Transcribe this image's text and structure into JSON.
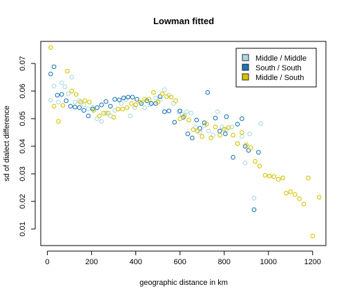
{
  "chart_data": {
    "type": "scatter",
    "title": "Lowman fitted",
    "xlabel": "geographic distance in km",
    "ylabel": "sd of dialect difference",
    "xlim": [
      -30,
      1260
    ],
    "ylim": [
      0.004,
      0.078
    ],
    "xticks": [
      0,
      200,
      400,
      600,
      800,
      1000,
      1200
    ],
    "yticks": [
      0.01,
      0.02,
      0.03,
      0.04,
      0.05,
      0.06,
      0.07
    ],
    "grid": false,
    "legend_position": "top-right",
    "series": [
      {
        "name": "Middle / Middle",
        "color": "#add8e6",
        "points": [
          [
            15,
            0.0567
          ],
          [
            30,
            0.0618
          ],
          [
            50,
            0.056
          ],
          [
            65,
            0.063
          ],
          [
            80,
            0.0615
          ],
          [
            95,
            0.059
          ],
          [
            110,
            0.065
          ],
          [
            125,
            0.056
          ],
          [
            145,
            0.0565
          ],
          [
            165,
            0.055
          ],
          [
            185,
            0.0535
          ],
          [
            205,
            0.054
          ],
          [
            225,
            0.05
          ],
          [
            245,
            0.049
          ],
          [
            265,
            0.052
          ],
          [
            285,
            0.051
          ],
          [
            305,
            0.053
          ],
          [
            335,
            0.0555
          ],
          [
            355,
            0.057
          ],
          [
            375,
            0.051
          ],
          [
            395,
            0.054
          ],
          [
            420,
            0.056
          ],
          [
            440,
            0.054
          ],
          [
            465,
            0.055
          ],
          [
            490,
            0.0575
          ],
          [
            510,
            0.057
          ],
          [
            530,
            0.0605
          ],
          [
            550,
            0.0585
          ],
          [
            570,
            0.0555
          ],
          [
            595,
            0.0525
          ],
          [
            610,
            0.0515
          ],
          [
            630,
            0.0525
          ],
          [
            650,
            0.052
          ],
          [
            670,
            0.047
          ],
          [
            690,
            0.045
          ],
          [
            710,
            0.0475
          ],
          [
            730,
            0.0455
          ],
          [
            750,
            0.044
          ],
          [
            770,
            0.0525
          ],
          [
            790,
            0.047
          ],
          [
            810,
            0.046
          ],
          [
            835,
            0.047
          ],
          [
            860,
            0.041
          ],
          [
            880,
            0.0435
          ],
          [
            895,
            0.034
          ],
          [
            915,
            0.0445
          ],
          [
            935,
            0.0212
          ],
          [
            965,
            0.0482
          ]
        ]
      },
      {
        "name": "South / South",
        "color": "#1f78b4",
        "points": [
          [
            15,
            0.0662
          ],
          [
            30,
            0.0688
          ],
          [
            45,
            0.0585
          ],
          [
            65,
            0.0588
          ],
          [
            85,
            0.0565
          ],
          [
            105,
            0.0545
          ],
          [
            125,
            0.0542
          ],
          [
            145,
            0.054
          ],
          [
            165,
            0.053
          ],
          [
            185,
            0.051
          ],
          [
            205,
            0.0535
          ],
          [
            225,
            0.054
          ],
          [
            245,
            0.055
          ],
          [
            265,
            0.0562
          ],
          [
            285,
            0.0545
          ],
          [
            305,
            0.057
          ],
          [
            325,
            0.0568
          ],
          [
            345,
            0.0575
          ],
          [
            365,
            0.0578
          ],
          [
            385,
            0.0578
          ],
          [
            405,
            0.057
          ],
          [
            425,
            0.0555
          ],
          [
            450,
            0.0565
          ],
          [
            470,
            0.0555
          ],
          [
            490,
            0.0555
          ],
          [
            510,
            0.058
          ],
          [
            530,
            0.0525
          ],
          [
            550,
            0.0528
          ],
          [
            575,
            0.0487
          ],
          [
            600,
            0.0528
          ],
          [
            615,
            0.0505
          ],
          [
            635,
            0.0445
          ],
          [
            655,
            0.043
          ],
          [
            675,
            0.0495
          ],
          [
            690,
            0.0465
          ],
          [
            710,
            0.0485
          ],
          [
            725,
            0.0595
          ],
          [
            760,
            0.0502
          ],
          [
            780,
            0.0455
          ],
          [
            805,
            0.0445
          ],
          [
            810,
            0.0507
          ],
          [
            840,
            0.036
          ],
          [
            860,
            0.048
          ],
          [
            880,
            0.05
          ],
          [
            895,
            0.04
          ],
          [
            910,
            0.0385
          ],
          [
            935,
            0.017
          ],
          [
            955,
            0.0378
          ]
        ]
      },
      {
        "name": "Middle / South",
        "color": "#d4c400",
        "points": [
          [
            15,
            0.0758
          ],
          [
            30,
            0.0545
          ],
          [
            50,
            0.049
          ],
          [
            70,
            0.0548
          ],
          [
            90,
            0.0672
          ],
          [
            110,
            0.06
          ],
          [
            130,
            0.0588
          ],
          [
            150,
            0.056
          ],
          [
            170,
            0.0565
          ],
          [
            190,
            0.056
          ],
          [
            210,
            0.053
          ],
          [
            235,
            0.051
          ],
          [
            255,
            0.052
          ],
          [
            275,
            0.052
          ],
          [
            300,
            0.0505
          ],
          [
            320,
            0.0535
          ],
          [
            340,
            0.0535
          ],
          [
            360,
            0.054
          ],
          [
            380,
            0.0555
          ],
          [
            400,
            0.055
          ],
          [
            420,
            0.056
          ],
          [
            440,
            0.057
          ],
          [
            460,
            0.057
          ],
          [
            480,
            0.0595
          ],
          [
            500,
            0.056
          ],
          [
            520,
            0.059
          ],
          [
            540,
            0.058
          ],
          [
            560,
            0.0578
          ],
          [
            580,
            0.0565
          ],
          [
            600,
            0.05
          ],
          [
            620,
            0.051
          ],
          [
            640,
            0.0495
          ],
          [
            660,
            0.046
          ],
          [
            680,
            0.0455
          ],
          [
            700,
            0.0435
          ],
          [
            720,
            0.048
          ],
          [
            740,
            0.043
          ],
          [
            760,
            0.047
          ],
          [
            780,
            0.044
          ],
          [
            800,
            0.0462
          ],
          [
            820,
            0.0468
          ],
          [
            840,
            0.044
          ],
          [
            860,
            0.041
          ],
          [
            880,
            0.045
          ],
          [
            900,
            0.0405
          ],
          [
            920,
            0.0395
          ],
          [
            940,
            0.0345
          ],
          [
            960,
            0.0328
          ],
          [
            985,
            0.0295
          ],
          [
            1005,
            0.0292
          ],
          [
            1025,
            0.029
          ],
          [
            1045,
            0.028
          ],
          [
            1065,
            0.0285
          ],
          [
            1080,
            0.023
          ],
          [
            1100,
            0.0235
          ],
          [
            1120,
            0.0225
          ],
          [
            1140,
            0.021
          ],
          [
            1160,
            0.019
          ],
          [
            1180,
            0.0285
          ],
          [
            1200,
            0.0075
          ],
          [
            1230,
            0.0215
          ]
        ]
      }
    ]
  }
}
